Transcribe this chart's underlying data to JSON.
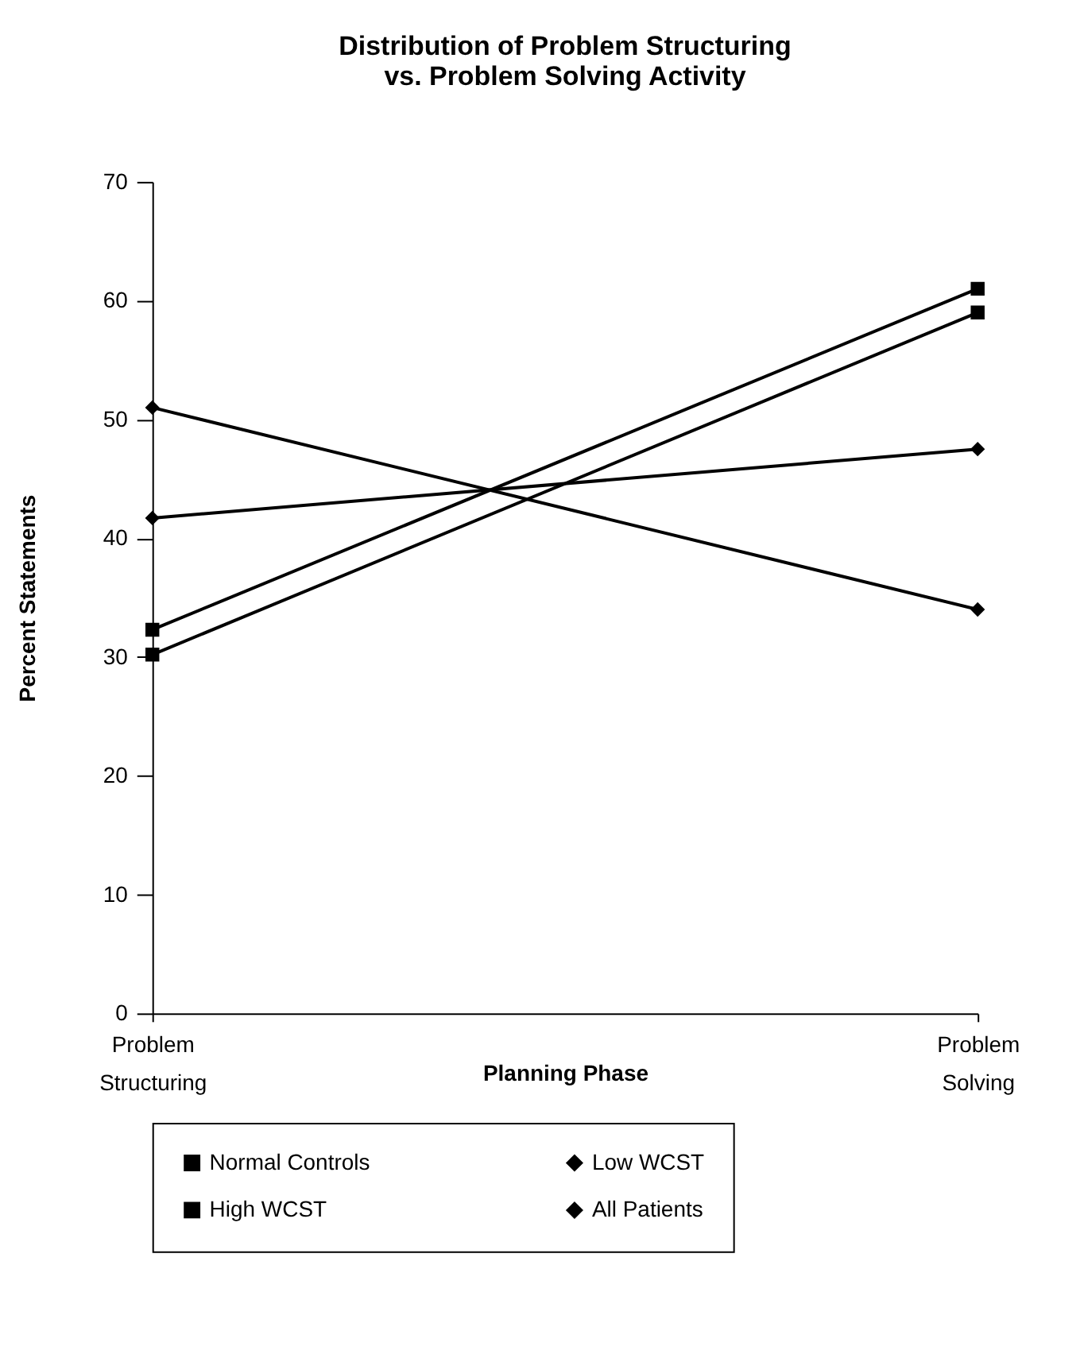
{
  "chart_data": {
    "type": "line",
    "title": "Distribution of Problem Structuring vs. Problem Solving Activity",
    "xlabel": "Planning Phase",
    "ylabel": "Percent Statements",
    "categories": [
      "Problem Structuring",
      "Problem Solving"
    ],
    "series": [
      {
        "name": "Normal Controls",
        "color": "#000000",
        "marker": "square",
        "values": [
          30.2,
          59
        ]
      },
      {
        "name": "Low WCST",
        "color": "#000000",
        "marker": "diamond",
        "values": [
          51,
          34
        ]
      },
      {
        "name": "High WCST",
        "color": "#000000",
        "marker": "square",
        "values": [
          32.3,
          61
        ]
      },
      {
        "name": "All Patients",
        "color": "#000000",
        "marker": "diamond",
        "values": [
          41.7,
          47.5
        ]
      }
    ],
    "ylim": [
      0,
      70
    ],
    "yticks": [
      0,
      10,
      20,
      30,
      40,
      50,
      60,
      70
    ],
    "grid": false,
    "legend": "bottom",
    "line_style": "solid"
  }
}
